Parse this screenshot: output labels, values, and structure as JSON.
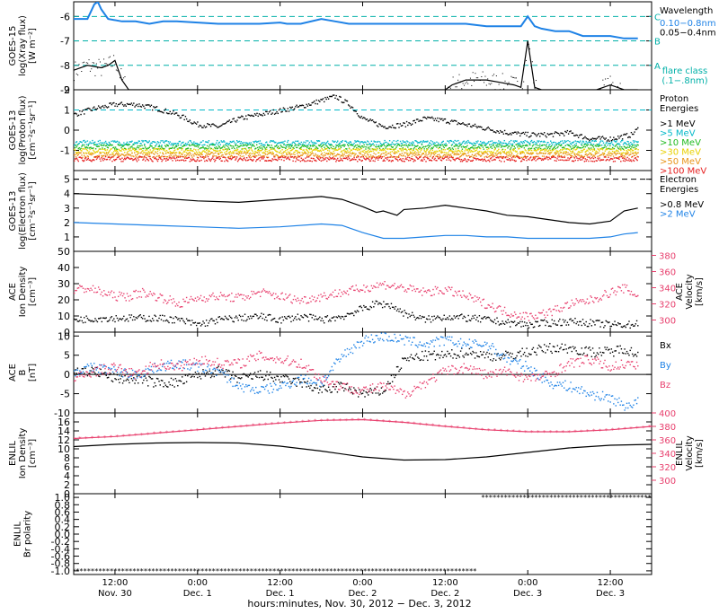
{
  "colors": {
    "black": "#000000",
    "blue": "#1e82e6",
    "pink": "#e8406e",
    "cyan": "#00b8c8",
    "teal": "#00b0a8",
    "green": "#22bb22",
    "orange": "#e89418",
    "yellow": "#e8d000",
    "red": "#e62020"
  },
  "time_axis": {
    "title": "hours:minutes, Nov. 30, 2012 − Dec. 3, 2012",
    "ticks": [
      {
        "hours": 6,
        "time": "12:00",
        "date": "Nov. 30"
      },
      {
        "hours": 18,
        "time": "0:00",
        "date": "Dec. 1"
      },
      {
        "hours": 30,
        "time": "12:00",
        "date": "Dec. 1"
      },
      {
        "hours": 42,
        "time": "0:00",
        "date": "Dec. 2"
      },
      {
        "hours": 54,
        "time": "12:00",
        "date": "Dec. 2"
      },
      {
        "hours": 66,
        "time": "0:00",
        "date": "Dec. 3"
      },
      {
        "hours": 78,
        "time": "12:00",
        "date": "Dec. 3"
      }
    ],
    "range_hours": [
      0,
      84
    ]
  },
  "chart_data": [
    {
      "id": "xray",
      "type": "line",
      "ylabel": "GOES-15\nlog(Xray flux)\n[W m⁻²]",
      "ylim": [
        -9,
        -5.4
      ],
      "yticks": [
        -9,
        -8,
        -7,
        -6
      ],
      "ytick_labels": [
        "-9",
        "-8",
        "-7",
        "-6"
      ],
      "legend_title": "Wavelength",
      "legend": [
        {
          "name": "0.10−0.8nm",
          "color": "#1e82e6"
        },
        {
          "name": "0.05−0.4nm",
          "color": "#000000"
        }
      ],
      "flare_classes": [
        {
          "label": "C",
          "y": -6
        },
        {
          "label": "B",
          "y": -7
        },
        {
          "label": "A",
          "y": -8
        }
      ],
      "flare_note": [
        "flare class",
        "(.1−.8nm)"
      ],
      "series": [
        {
          "color": "#1e82e6",
          "x": [
            0,
            2,
            3,
            3.5,
            4,
            5,
            7,
            9,
            11,
            13,
            15,
            18,
            21,
            24,
            27,
            30,
            31,
            33,
            36,
            38,
            40,
            42,
            45,
            48,
            51,
            54,
            57,
            60,
            63,
            65,
            66,
            67,
            68,
            70,
            72,
            74,
            76,
            78,
            80,
            82
          ],
          "y": [
            -6.1,
            -6.1,
            -5.5,
            -5.4,
            -5.7,
            -6.1,
            -6.2,
            -6.2,
            -6.3,
            -6.2,
            -6.2,
            -6.25,
            -6.3,
            -6.3,
            -6.3,
            -6.25,
            -6.3,
            -6.3,
            -6.1,
            -6.2,
            -6.3,
            -6.3,
            -6.3,
            -6.3,
            -6.3,
            -6.3,
            -6.3,
            -6.4,
            -6.4,
            -6.4,
            -6.0,
            -6.4,
            -6.5,
            -6.6,
            -6.6,
            -6.8,
            -6.8,
            -6.8,
            -6.9,
            -6.9
          ]
        },
        {
          "color": "#000000",
          "x": [
            0,
            2,
            4,
            5,
            6,
            7,
            8,
            9,
            10,
            12,
            20,
            30,
            40,
            50,
            54,
            55,
            57,
            60,
            62,
            64,
            65,
            66,
            67,
            68,
            70,
            72,
            74,
            76,
            78,
            80,
            82
          ],
          "y": [
            -8.2,
            -8.0,
            -8.1,
            -8.0,
            -7.8,
            -8.6,
            -9,
            -9,
            -9,
            -9,
            -9,
            -9,
            -9,
            -9,
            -9,
            -8.8,
            -8.6,
            -8.6,
            -8.7,
            -8.8,
            -8.9,
            -7.0,
            -8.9,
            -9,
            -9,
            -9,
            -9,
            -9,
            -8.8,
            -9,
            -9
          ]
        }
      ]
    },
    {
      "id": "proton",
      "type": "scatter",
      "ylabel": "GOES-13\nlog(Proton flux)\n[cm⁻²s⁻¹sr⁻¹]",
      "ylim": [
        -2,
        2
      ],
      "yticks": [
        -1,
        0,
        1,
        2
      ],
      "ytick_labels": [
        "-1",
        "0",
        "1",
        "2"
      ],
      "legend_title": "Proton\nEnergies",
      "reference_line": 1,
      "legend": [
        {
          "name": ">1 MeV",
          "color": "#000000"
        },
        {
          "name": ">5 MeV",
          "color": "#00b8c8"
        },
        {
          "name": ">10 MeV",
          "color": "#22bb22"
        },
        {
          "name": ">30 MeV",
          "color": "#e8d000"
        },
        {
          "name": ">50 MeV",
          "color": "#e89418"
        },
        {
          "name": ">100 MeV",
          "color": "#e62020"
        }
      ],
      "series": [
        {
          "color": "#000000",
          "x": [
            0,
            3,
            6,
            9,
            12,
            15,
            18,
            21,
            24,
            27,
            30,
            33,
            36,
            38,
            40,
            42,
            45,
            48,
            51,
            54,
            57,
            60,
            63,
            66,
            69,
            72,
            75,
            78,
            81,
            82
          ],
          "y": [
            0.8,
            1.1,
            1.3,
            1.3,
            1.1,
            0.8,
            0.3,
            0.2,
            0.6,
            0.8,
            1.0,
            1.2,
            1.5,
            1.7,
            1.3,
            0.6,
            0.2,
            0.3,
            0.6,
            0.5,
            0.3,
            0.1,
            -0.1,
            -0.2,
            -0.2,
            -0.1,
            -0.4,
            -0.4,
            -0.2,
            0.1
          ]
        },
        {
          "color": "#00b8c8",
          "x": [
            0,
            82
          ],
          "y": [
            -0.6,
            -0.6
          ]
        },
        {
          "color": "#22bb22",
          "x": [
            0,
            82
          ],
          "y": [
            -0.8,
            -0.8
          ]
        },
        {
          "color": "#e8d000",
          "x": [
            0,
            82
          ],
          "y": [
            -1.0,
            -1.0
          ]
        },
        {
          "color": "#e89418",
          "x": [
            0,
            82
          ],
          "y": [
            -1.2,
            -1.2
          ]
        },
        {
          "color": "#e62020",
          "x": [
            0,
            82
          ],
          "y": [
            -1.4,
            -1.4
          ]
        }
      ]
    },
    {
      "id": "electron",
      "type": "line",
      "ylabel": "GOES-13\nlog(Electron flux)\n[cm⁻²s⁻¹sr⁻¹]",
      "ylim": [
        0,
        5.6
      ],
      "yticks": [
        1,
        2,
        3,
        4,
        5
      ],
      "ytick_labels": [
        "1",
        "2",
        "3",
        "4",
        "5"
      ],
      "legend_title": "Electron\nEnergies",
      "reference_line": 5,
      "legend": [
        {
          "name": ">0.8 MeV",
          "color": "#000000"
        },
        {
          "name": ">2 MeV",
          "color": "#1e82e6"
        }
      ],
      "series": [
        {
          "color": "#000000",
          "x": [
            0,
            6,
            12,
            18,
            24,
            30,
            36,
            39,
            42,
            44,
            45,
            47,
            48,
            51,
            54,
            57,
            60,
            63,
            66,
            69,
            72,
            75,
            78,
            80,
            82
          ],
          "y": [
            4.0,
            3.9,
            3.7,
            3.5,
            3.4,
            3.6,
            3.8,
            3.6,
            3.1,
            2.7,
            2.8,
            2.5,
            2.9,
            3.0,
            3.2,
            3.0,
            2.8,
            2.5,
            2.4,
            2.2,
            2.0,
            1.9,
            2.1,
            2.8,
            3.0
          ]
        },
        {
          "color": "#1e82e6",
          "x": [
            0,
            6,
            12,
            18,
            24,
            30,
            36,
            39,
            42,
            45,
            48,
            51,
            54,
            57,
            60,
            63,
            66,
            69,
            72,
            75,
            78,
            80,
            82
          ],
          "y": [
            2.0,
            1.9,
            1.8,
            1.7,
            1.6,
            1.7,
            1.9,
            1.8,
            1.3,
            0.9,
            0.9,
            1.0,
            1.1,
            1.1,
            1.0,
            1.0,
            0.9,
            0.9,
            0.9,
            0.9,
            1.0,
            1.2,
            1.3
          ]
        }
      ]
    },
    {
      "id": "ace_plasma",
      "type": "scatter",
      "ylabel": "ACE\nIon Density\n[cm⁻³]",
      "ylabel_right": "ACE\nVelocity\n[km/s]",
      "ylim": [
        0,
        50
      ],
      "yticks": [
        0,
        10,
        20,
        30,
        40,
        50
      ],
      "ytick_labels": [
        "0",
        "10",
        "20",
        "30",
        "40",
        "50"
      ],
      "ylim_right": [
        285,
        385
      ],
      "yticks_right": [
        300,
        320,
        340,
        360,
        380
      ],
      "ytick_labels_right": [
        "300",
        "320",
        "340",
        "360",
        "380"
      ],
      "series": [
        {
          "color": "#000000",
          "axis": "left",
          "x": [
            0,
            4,
            8,
            12,
            15,
            18,
            21,
            24,
            27,
            30,
            33,
            36,
            39,
            42,
            44,
            46,
            48,
            51,
            54,
            57,
            60,
            63,
            66,
            69,
            72,
            75,
            78,
            81,
            82
          ],
          "y": [
            8,
            9,
            9,
            9,
            8,
            5,
            8,
            9,
            10,
            8,
            10,
            8,
            10,
            15,
            18,
            17,
            12,
            8,
            10,
            9,
            8,
            6,
            5,
            6,
            7,
            6,
            5,
            5,
            6
          ]
        },
        {
          "color": "#e8406e",
          "axis": "right",
          "x": [
            0,
            2,
            4,
            6,
            8,
            10,
            12,
            14,
            15,
            18,
            21,
            24,
            27,
            30,
            33,
            36,
            39,
            42,
            45,
            48,
            51,
            54,
            57,
            60,
            63,
            66,
            69,
            72,
            75,
            78,
            80,
            82
          ],
          "y": [
            338,
            340,
            335,
            330,
            330,
            335,
            330,
            325,
            320,
            328,
            330,
            328,
            335,
            330,
            325,
            330,
            335,
            340,
            345,
            340,
            335,
            338,
            330,
            320,
            310,
            305,
            310,
            320,
            325,
            335,
            340,
            330
          ]
        }
      ]
    },
    {
      "id": "ace_mag",
      "type": "scatter",
      "ylabel": "ACE\nB\n[nT]",
      "ylim": [
        -10,
        11
      ],
      "yticks": [
        -10,
        -5,
        0,
        5,
        10
      ],
      "ytick_labels": [
        "-10",
        "-5",
        "0",
        "5",
        "10"
      ],
      "legend": [
        {
          "name": "Bx",
          "color": "#000000"
        },
        {
          "name": "By",
          "color": "#1e82e6"
        },
        {
          "name": "Bz",
          "color": "#e8406e"
        }
      ],
      "series": [
        {
          "color": "#000000",
          "x": [
            0,
            3,
            6,
            9,
            12,
            15,
            18,
            21,
            24,
            27,
            30,
            33,
            36,
            39,
            42,
            45,
            48,
            51,
            54,
            57,
            60,
            63,
            66,
            69,
            72,
            75,
            78,
            80,
            82
          ],
          "y": [
            1,
            1,
            -1,
            -1,
            -2,
            -2,
            0,
            1,
            -1,
            0,
            -1,
            -2,
            -4,
            -3,
            -5,
            -4,
            4,
            5,
            5,
            6,
            5,
            5,
            6,
            7,
            7,
            6,
            6,
            7,
            5
          ]
        },
        {
          "color": "#1e82e6",
          "x": [
            0,
            3,
            6,
            9,
            12,
            15,
            18,
            21,
            24,
            27,
            30,
            33,
            36,
            39,
            42,
            45,
            48,
            51,
            54,
            57,
            60,
            63,
            66,
            69,
            72,
            75,
            78,
            80,
            82
          ],
          "y": [
            1,
            2,
            1,
            0,
            2,
            3,
            2,
            1,
            -3,
            -4,
            -3,
            -1,
            -2,
            5,
            9,
            10,
            9,
            8,
            9,
            8,
            8,
            4,
            2,
            -2,
            -3,
            -5,
            -6,
            -8,
            -7
          ]
        },
        {
          "color": "#e8406e",
          "x": [
            0,
            3,
            6,
            9,
            12,
            15,
            18,
            21,
            24,
            27,
            30,
            33,
            36,
            39,
            42,
            45,
            48,
            51,
            54,
            57,
            60,
            63,
            66,
            69,
            72,
            75,
            78,
            80,
            82
          ],
          "y": [
            -1,
            1,
            2,
            0,
            3,
            2,
            4,
            3,
            3,
            5,
            4,
            3,
            -1,
            -3,
            -4,
            -3,
            -5,
            -2,
            1,
            2,
            0,
            1,
            -1,
            0,
            3,
            4,
            2,
            3,
            2
          ]
        }
      ]
    },
    {
      "id": "enlil_plasma",
      "type": "line",
      "ylabel": "ENLIL\nIon Density\n[cm⁻³]",
      "ylabel_right": "ENLIL\nVelocity\n[km/s]",
      "ylim": [
        0,
        18
      ],
      "yticks": [
        0,
        2,
        4,
        6,
        8,
        10,
        12,
        14,
        16
      ],
      "ytick_labels": [
        "0",
        "2",
        "4",
        "6",
        "8",
        "10",
        "12",
        "14",
        "16"
      ],
      "ylim_right": [
        280,
        400
      ],
      "yticks_right": [
        300,
        320,
        340,
        360,
        380,
        400
      ],
      "ytick_labels_right": [
        "300",
        "320",
        "340",
        "360",
        "380",
        "400"
      ],
      "series": [
        {
          "color": "#000000",
          "axis": "left",
          "x": [
            0,
            6,
            12,
            18,
            24,
            30,
            36,
            42,
            48,
            54,
            60,
            66,
            72,
            78,
            84
          ],
          "y": [
            10.5,
            11,
            11.3,
            11.4,
            11.3,
            10.6,
            9.5,
            8.2,
            7.5,
            7.6,
            8.2,
            9.2,
            10.2,
            10.8,
            11
          ]
        },
        {
          "color": "#e8406e",
          "axis": "right",
          "x": [
            0,
            6,
            12,
            18,
            24,
            30,
            36,
            42,
            48,
            54,
            60,
            66,
            72,
            78,
            84
          ],
          "y": [
            362,
            365,
            370,
            375,
            380,
            385,
            389,
            390,
            386,
            380,
            375,
            372,
            372,
            375,
            380
          ]
        }
      ]
    },
    {
      "id": "enlil_polarity",
      "type": "scatter",
      "ylabel": "ENLIL\nBr polarity",
      "ylim": [
        -1.1,
        1.1
      ],
      "yticks": [
        -1.0,
        -0.8,
        -0.6,
        -0.4,
        -0.2,
        0.0,
        0.2,
        0.4,
        0.6,
        0.8,
        1.0
      ],
      "ytick_labels": [
        "-1.0",
        "-0.8",
        "-0.6",
        "-0.4",
        "-0.2",
        "0.0",
        "0.2",
        "0.4",
        "0.6",
        "0.8",
        "1.0"
      ],
      "series": [
        {
          "color": "#000000",
          "x": [
            0,
            58.5
          ],
          "y": [
            -1,
            -1
          ]
        },
        {
          "color": "#000000",
          "x": [
            59.5,
            84
          ],
          "y": [
            1,
            1
          ]
        }
      ]
    }
  ]
}
